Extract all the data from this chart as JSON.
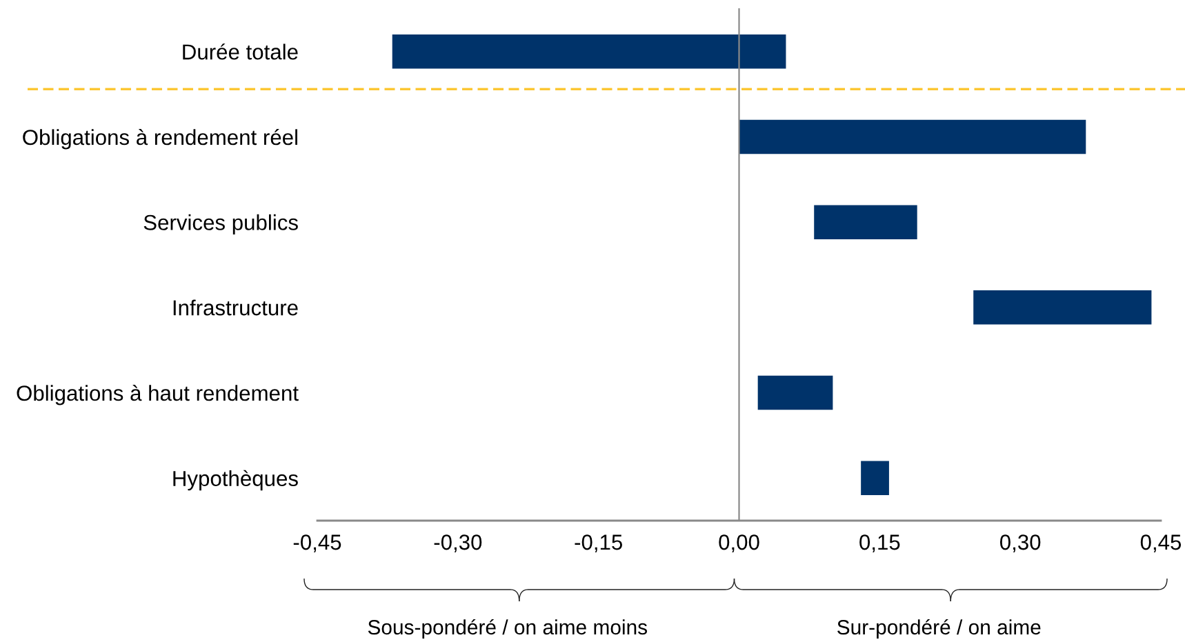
{
  "chart_data": {
    "type": "bar",
    "orientation": "horizontal",
    "categories": [
      "Durée totale",
      "Obligations à rendement réel",
      "Services publics",
      "Infrastructure",
      "Obligations à haut rendement",
      "Hypothèques"
    ],
    "base": [
      -0.37,
      0,
      0.08,
      0.25,
      0.02,
      0.13
    ],
    "values": [
      0.42,
      0.37,
      0.11,
      0.19,
      0.08,
      0.03
    ],
    "color": "#00336a",
    "xlim": [
      -0.45,
      0.45
    ],
    "xticks": [
      {
        "value": -0.45,
        "label": "-0,45"
      },
      {
        "value": -0.3,
        "label": "-0,30"
      },
      {
        "value": -0.15,
        "label": "-0,15"
      },
      {
        "value": 0,
        "label": "0,00"
      },
      {
        "value": 0.15,
        "label": "0,15"
      },
      {
        "value": 0.3,
        "label": "0,30"
      },
      {
        "value": 0.45,
        "label": "0,45"
      }
    ],
    "annotations": [
      "Sous-pondéré / on aime moins",
      "Sur-pondéré / on aime"
    ]
  }
}
